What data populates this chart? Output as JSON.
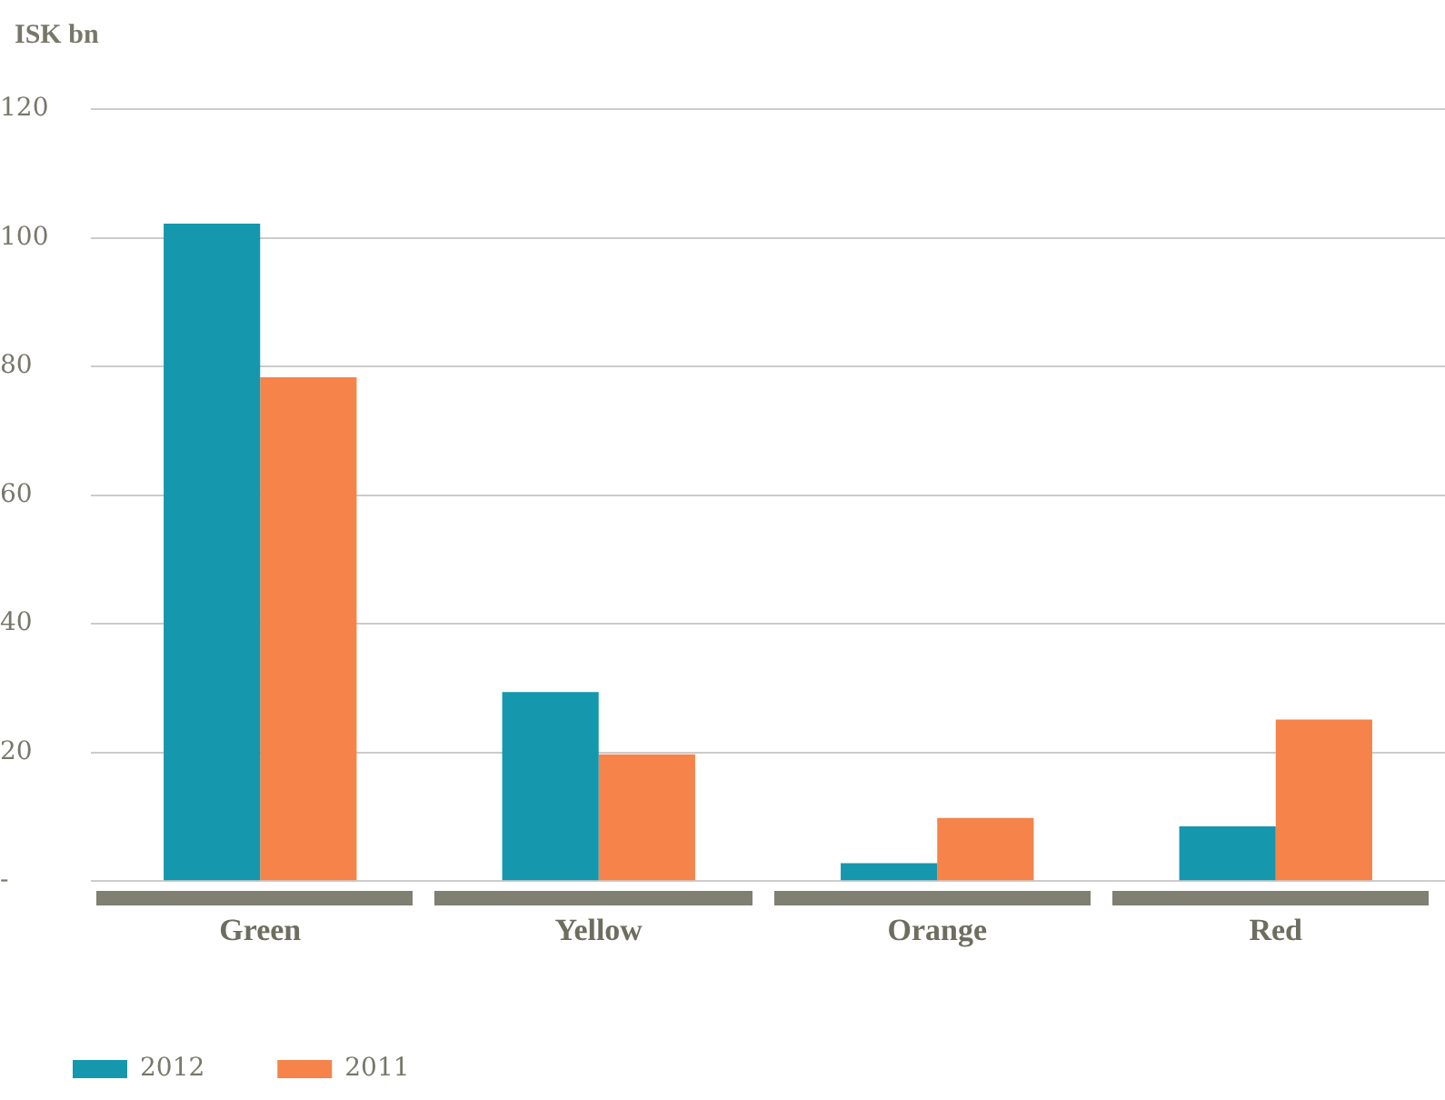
{
  "chart_data": {
    "type": "bar",
    "ylabel": "ISK bn",
    "categories": [
      "Green",
      "Yellow",
      "Orange",
      "Red"
    ],
    "series": [
      {
        "name": "2012",
        "color": "#1597ad",
        "values": [
          102.2,
          29.4,
          2.8,
          8.5
        ]
      },
      {
        "name": "2011",
        "color": "#f5834a",
        "values": [
          78.3,
          19.7,
          9.8,
          25.1
        ]
      }
    ],
    "ylim": [
      0,
      120
    ],
    "yticks": [
      {
        "value": 0,
        "label": "-"
      },
      20,
      40,
      60,
      80,
      100,
      120
    ],
    "grid": "y",
    "legend": "bottom left"
  }
}
